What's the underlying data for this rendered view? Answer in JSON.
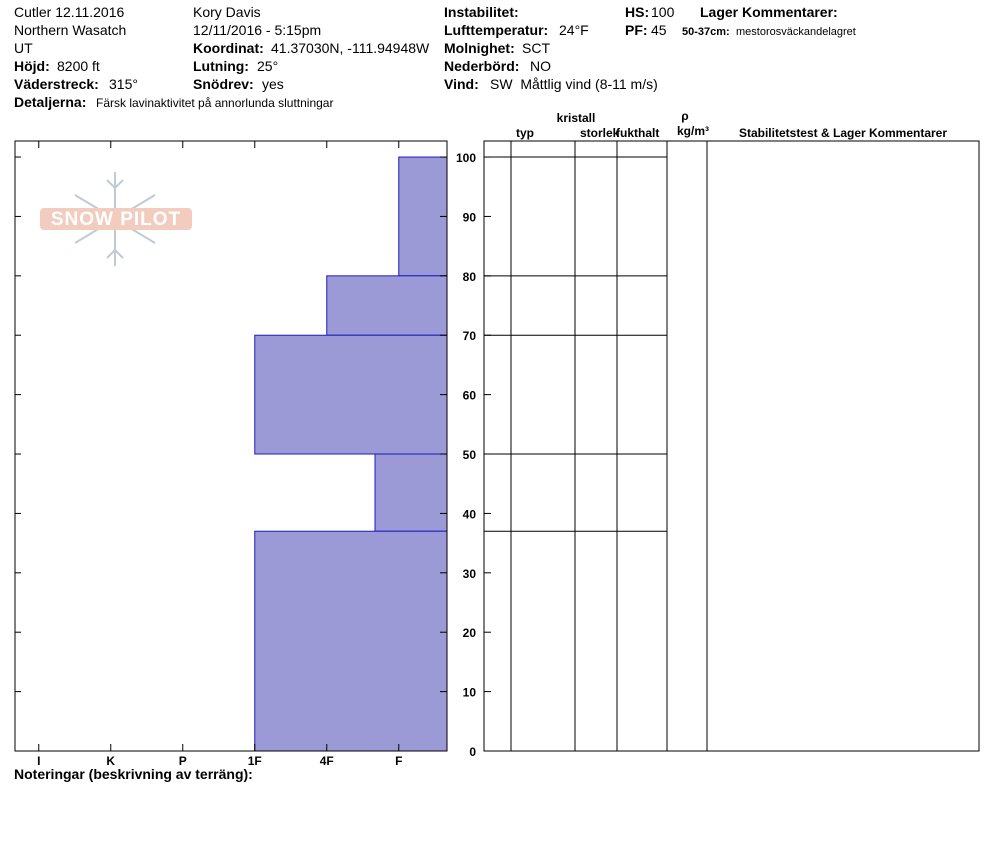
{
  "header": {
    "site": "Cutler 12.11.2016",
    "range": "Northern Wasatch",
    "state": "UT",
    "elevation": {
      "label": "Höjd:",
      "value": "8200 ft"
    },
    "aspect": {
      "label": "Väderstreck:",
      "value": "315°"
    },
    "details": {
      "label": "Detaljerna:",
      "value": "Färsk lavinaktivitet på annorlunda sluttningar"
    },
    "observer": "Kory Davis",
    "datetime": "12/11/2016 - 5:15pm",
    "coordinates": {
      "label": "Koordinat:",
      "value": "41.37030N, -111.94948W"
    },
    "slope": {
      "label": "Lutning:",
      "value": "25°"
    },
    "wind_loading": {
      "label": "Snödrev:",
      "value": "yes"
    },
    "instability": {
      "label": "Instabilitet:"
    },
    "air_temp": {
      "label": "Lufttemperatur:",
      "value": "24°F"
    },
    "sky": {
      "label": "Molnighet:",
      "value": "SCT"
    },
    "precip": {
      "label": "Nederbörd:",
      "value": "NO"
    },
    "wind": {
      "label": "Vind:",
      "value": "SW  Måttlig vind (8-11 m/s)"
    },
    "hs": {
      "label": "HS:",
      "value": "100"
    },
    "pf": {
      "label": "PF:",
      "value": "45"
    },
    "layer_comments": {
      "title": "Lager Kommentarer:",
      "label": "50-37cm:",
      "value": "mestorosväckandelagret"
    }
  },
  "logo": "SNOW PILOT",
  "chart_data": {
    "type": "hardness_profile",
    "xlim": [
      6.33,
      0.33
    ],
    "xticks": [
      {
        "value": 6,
        "label": "I"
      },
      {
        "value": 5,
        "label": "K"
      },
      {
        "value": 4,
        "label": "P"
      },
      {
        "value": 3,
        "label": "1F"
      },
      {
        "value": 2,
        "label": "4F"
      },
      {
        "value": 1,
        "label": "F"
      }
    ],
    "ylim": [
      0,
      102.7
    ],
    "yticks": [
      0,
      10,
      20,
      30,
      40,
      50,
      60,
      70,
      80,
      90,
      100
    ],
    "color": "#9b9ad6",
    "edge_color": "#1c1cbf",
    "layers": [
      {
        "top": 100,
        "bottom": 80,
        "hardness": 1
      },
      {
        "top": 80,
        "bottom": 70,
        "hardness": 2
      },
      {
        "top": 70,
        "bottom": 50,
        "hardness": 3
      },
      {
        "top": 50,
        "bottom": 37,
        "hardness": 1.33
      },
      {
        "top": 37,
        "bottom": 0,
        "hardness": 3
      }
    ]
  },
  "table": {
    "typ": "typ",
    "kristall": "kristall",
    "storlek": "storlek",
    "fukthalt": "fukthalt",
    "rho": "ρ",
    "density_unit": "kg/m³",
    "stability": "Stabilitetstest & Lager Kommentarer"
  },
  "notes_label": "Noteringar (beskrivning av terräng):"
}
